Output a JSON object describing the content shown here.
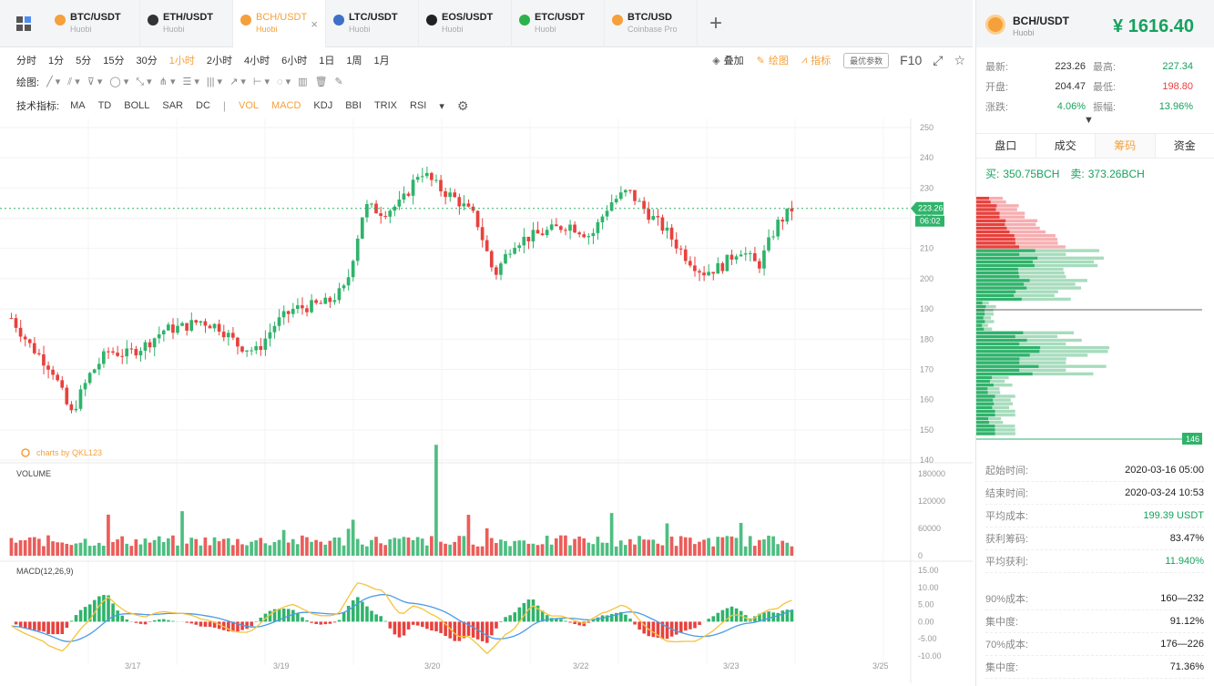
{
  "tabs": [
    {
      "name": "BTC/USDT",
      "sub": "Huobi",
      "color": "#f5a03b",
      "active": false
    },
    {
      "name": "ETH/USDT",
      "sub": "Huobi",
      "color": "#333333",
      "active": false
    },
    {
      "name": "BCH/USDT",
      "sub": "Huobi",
      "color": "#f5a03b",
      "active": true,
      "close": "×"
    },
    {
      "name": "LTC/USDT",
      "sub": "Huobi",
      "color": "#3e70c9",
      "active": false
    },
    {
      "name": "EOS/USDT",
      "sub": "Huobi",
      "color": "#222222",
      "active": false
    },
    {
      "name": "ETC/USDT",
      "sub": "Huobi",
      "color": "#2bb24c",
      "active": false
    },
    {
      "name": "BTC/USD",
      "sub": "Coinbase Pro",
      "color": "#f5a03b",
      "active": false
    }
  ],
  "add_tab": "+",
  "periods": [
    "分时",
    "1分",
    "5分",
    "15分",
    "30分",
    "1小时",
    "2小时",
    "4小时",
    "6小时",
    "1日",
    "1周",
    "1月"
  ],
  "active_period": "1小时",
  "toolbar_right": {
    "overlay": "叠加",
    "draw": "绘图",
    "indicator": "指标",
    "optimize": "最优参数",
    "f10": "F10"
  },
  "draw_label": "绘图:",
  "draw_tools": [
    "╱ ▾",
    "⫽ ▾",
    "⊽ ▾",
    "◯ ▾",
    "⤡ ▾",
    "⋔ ▾",
    "☰ ▾",
    "||| ▾",
    "↗ ▾",
    "⊢ ▾",
    "◌ ▾",
    "▥",
    "🗑",
    "✎"
  ],
  "indicator_label": "技术指标:",
  "indicators": [
    "MA",
    "TD",
    "BOLL",
    "SAR",
    "DC"
  ],
  "indicators2": [
    "VOL",
    "MACD",
    "KDJ",
    "BBI",
    "TRIX",
    "RSI"
  ],
  "active_indicators": [
    "VOL",
    "MACD"
  ],
  "chart": {
    "watermark": "charts by QKL123",
    "volume_label": "VOLUME",
    "macd_label": "MACD(12,26,9)",
    "price_ticks": [
      "250",
      "240",
      "230",
      "220",
      "210",
      "200",
      "190",
      "180",
      "170",
      "160",
      "150",
      "140"
    ],
    "volume_ticks": [
      "180000",
      "120000",
      "60000",
      "0"
    ],
    "macd_ticks": [
      "15.00",
      "10.00",
      "5.00",
      "0.00",
      "-5.00",
      "-10.00"
    ],
    "x_labels": [
      "3/17",
      "3/19",
      "3/20",
      "3/22",
      "3/23",
      "3/25"
    ],
    "last_price_tag": "223.26",
    "countdown_tag": "06:02",
    "colors": {
      "up": "#2fb36b",
      "down": "#e8413d",
      "dif": "#4a9be8",
      "dea": "#f5c33b"
    }
  },
  "right_panel": {
    "title": "BCH/USDT",
    "sub": "Huobi",
    "price": "¥ 1616.40",
    "stats": [
      [
        {
          "l": "最新:",
          "v": "223.26",
          "c": ""
        },
        {
          "l": "最高:",
          "v": "227.34",
          "c": "green"
        }
      ],
      [
        {
          "l": "开盘:",
          "v": "204.47",
          "c": ""
        },
        {
          "l": "最低:",
          "v": "198.80",
          "c": "red"
        }
      ],
      [
        {
          "l": "涨跌:",
          "v": "4.06%",
          "c": "green"
        },
        {
          "l": "振幅:",
          "v": "13.96%",
          "c": "green"
        }
      ]
    ],
    "tabs": [
      "盘口",
      "成交",
      "筹码",
      "资金"
    ],
    "active_tab": "筹码",
    "buy_label": "买:",
    "buy_value": "350.75BCH",
    "sell_label": "卖:",
    "sell_value": "373.26BCH",
    "dist_tag": "146",
    "info1": [
      {
        "l": "起始时间:",
        "v": "2020-03-16 05:00",
        "c": ""
      },
      {
        "l": "结束时间:",
        "v": "2020-03-24 10:53",
        "c": ""
      },
      {
        "l": "平均成本:",
        "v": "199.39 USDT",
        "c": "green"
      },
      {
        "l": "获利筹码:",
        "v": "83.47%",
        "c": ""
      },
      {
        "l": "平均获利:",
        "v": "11.940%",
        "c": "green"
      }
    ],
    "info2": [
      {
        "l": "90%成本:",
        "v": "160—232",
        "c": ""
      },
      {
        "l": "集中度:",
        "v": "91.12%",
        "c": ""
      },
      {
        "l": "70%成本:",
        "v": "176—226",
        "c": ""
      },
      {
        "l": "集中度:",
        "v": "71.36%",
        "c": ""
      }
    ]
  }
}
